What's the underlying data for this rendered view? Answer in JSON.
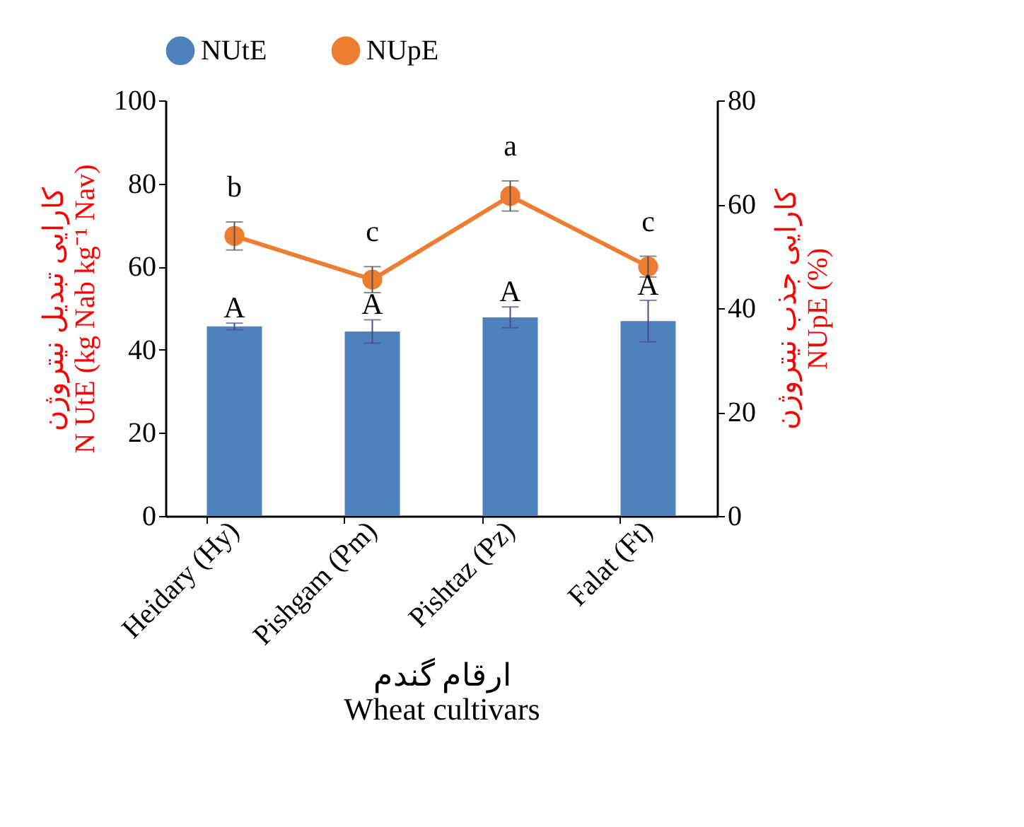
{
  "chart_data": {
    "type": "bar",
    "categories": [
      "Heidary (Hy)",
      "Pishgam (Pm)",
      "Pishtaz (Pz)",
      "Falat (Ft)"
    ],
    "xlabel": "ارقام گندم\nWheat cultivars",
    "ylabel": "کارایی تبدیل نیتروژن\nN UtE (kg Nab kg⁻¹ Nav)",
    "y2label": "کارایی جذب نیتروژن\nNUpE (%)",
    "series": [
      {
        "name": "NUtE",
        "color": "#4f81bd",
        "values": [
          45.6,
          44.4,
          47.8,
          46.9
        ],
        "errors": [
          0.8,
          2.8,
          2.5,
          5
        ]
      },
      {
        "name": "NUpE",
        "type": "line",
        "axis": "y2",
        "color": "#ed7d31",
        "values": [
          53.9,
          45.5,
          61.6,
          48.0
        ],
        "errors": [
          2.7,
          2.5,
          2.9,
          2
        ]
      }
    ],
    "ylim": [
      0,
      100
    ],
    "yticks": [
      0,
      20,
      40,
      60,
      80,
      100
    ],
    "y2lim": [
      0,
      80
    ],
    "y2ticks": [
      0,
      20,
      40,
      60,
      80
    ],
    "marker": "circle",
    "grid": false,
    "legend": "top",
    "annotations": [
      "A",
      "A",
      "A",
      "A",
      "b",
      "c",
      "a",
      "c"
    ]
  }
}
